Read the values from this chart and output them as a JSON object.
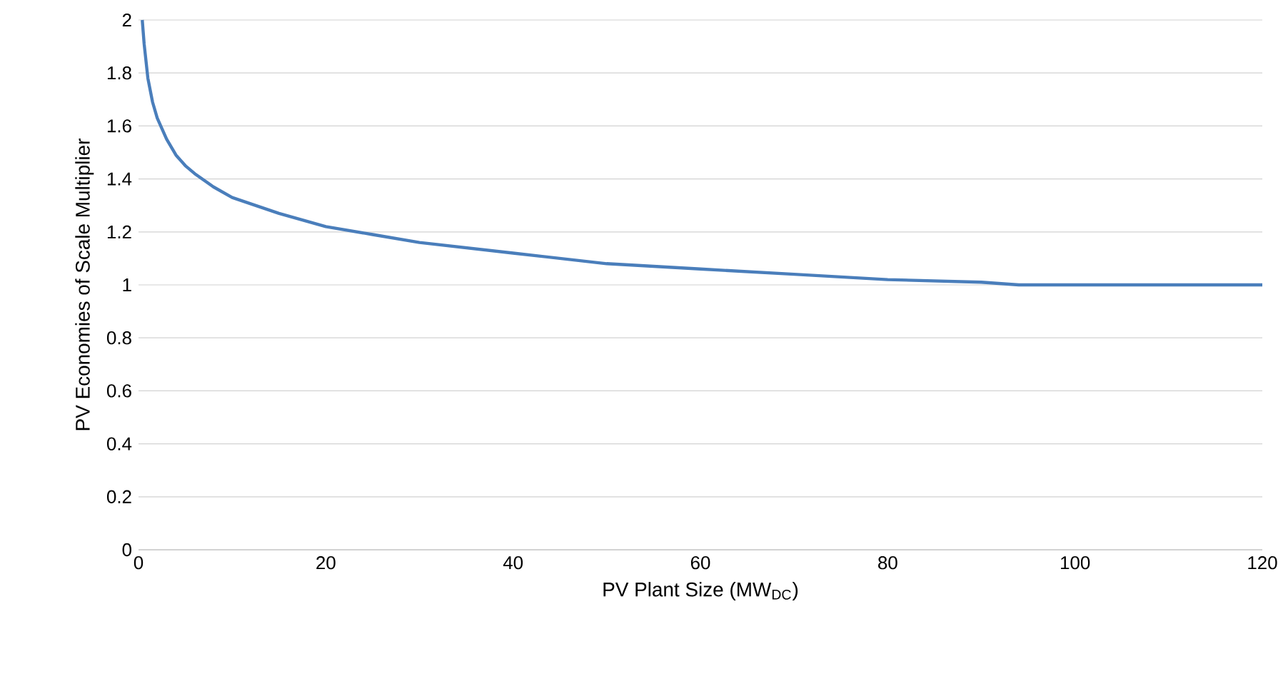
{
  "chart_data": {
    "type": "line",
    "xlabel": "PV Plant Size (MW$_{DC}$)",
    "ylabel": "PV Economies of Scale Multiplier",
    "x": [
      0.4,
      0.6,
      1,
      1.5,
      2,
      3,
      4,
      5,
      6,
      8,
      10,
      15,
      20,
      25,
      30,
      40,
      50,
      60,
      70,
      80,
      90,
      94,
      120
    ],
    "series": [
      {
        "color": "#4a7ebb",
        "values": [
          2.0,
          1.91,
          1.78,
          1.69,
          1.63,
          1.55,
          1.49,
          1.45,
          1.42,
          1.37,
          1.33,
          1.27,
          1.22,
          1.19,
          1.16,
          1.12,
          1.08,
          1.06,
          1.04,
          1.02,
          1.01,
          1.0,
          1.0
        ]
      }
    ],
    "xlim": [
      0,
      120
    ],
    "ylim": [
      0,
      2
    ],
    "xticks": [
      0,
      20,
      40,
      60,
      80,
      100,
      120
    ],
    "yticks": [
      0,
      0.2,
      0.4,
      0.6,
      0.8,
      1,
      1.2,
      1.4,
      1.6,
      1.8,
      2
    ],
    "grid": "y"
  }
}
